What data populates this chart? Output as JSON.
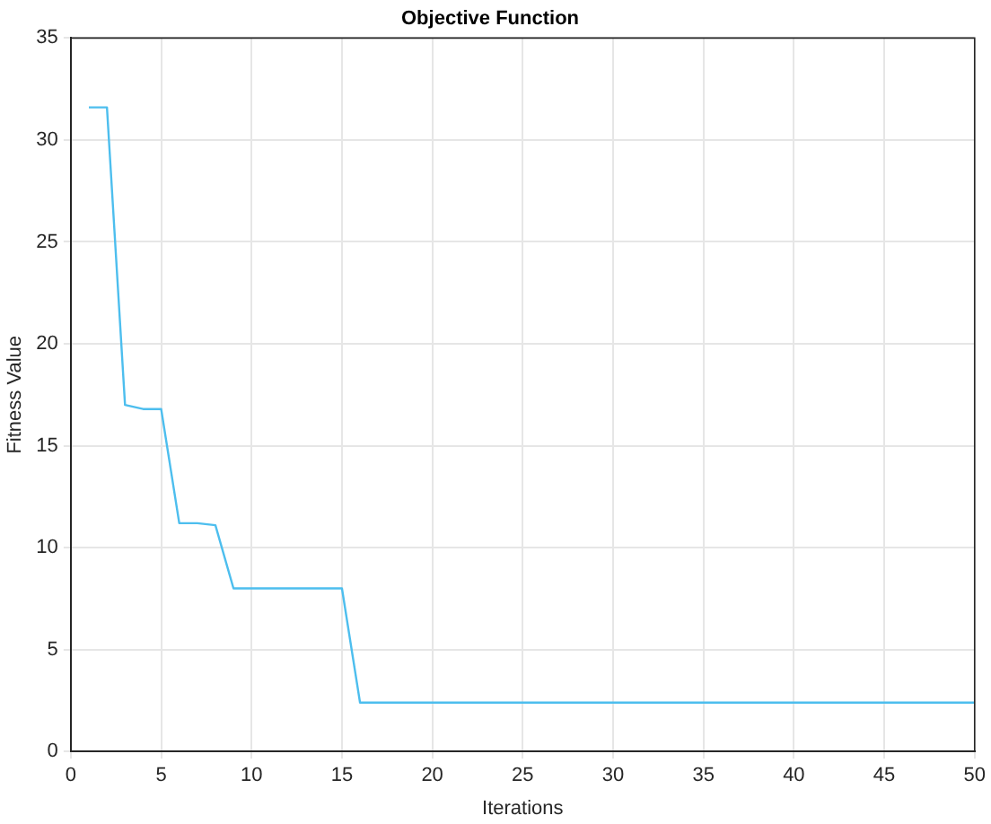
{
  "chart_data": {
    "type": "line",
    "title": "Objective Function",
    "xlabel": "Iterations",
    "ylabel": "Fitness Value",
    "series": [
      {
        "color": "#4dbeee",
        "x": [
          1,
          2,
          3,
          4,
          5,
          6,
          7,
          8,
          9,
          15,
          16,
          50
        ],
        "values": [
          31.6,
          31.6,
          17,
          16.8,
          16.8,
          11.2,
          11.2,
          11.1,
          8,
          8,
          2.4,
          2.4
        ]
      }
    ],
    "xlim": [
      0,
      50
    ],
    "xticks": [
      0,
      5,
      10,
      15,
      20,
      25,
      30,
      35,
      40,
      45,
      50
    ],
    "ylim": [
      0,
      35
    ],
    "yticks": [
      0,
      5,
      10,
      15,
      20,
      25,
      30,
      35
    ],
    "grid": true,
    "marker": "none",
    "line_style": "solid"
  }
}
